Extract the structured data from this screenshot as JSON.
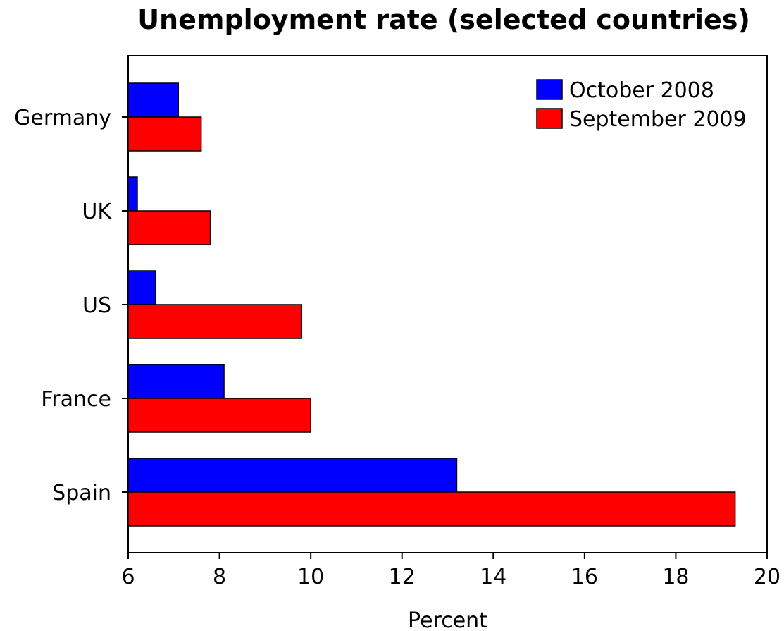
{
  "chart_data": {
    "type": "bar",
    "orientation": "horizontal",
    "title": "Unemployment rate (selected countries)",
    "xlabel": "Percent",
    "ylabel": "",
    "categories": [
      "Germany",
      "UK",
      "US",
      "France",
      "Spain"
    ],
    "series": [
      {
        "name": "October 2008",
        "color": "#0000ff",
        "values": [
          7.1,
          6.2,
          6.6,
          8.1,
          13.2
        ]
      },
      {
        "name": "September 2009",
        "color": "#ff0000",
        "values": [
          7.6,
          7.8,
          9.8,
          10.0,
          19.3
        ]
      }
    ],
    "xlim": [
      6,
      20
    ],
    "xticks": [
      6,
      8,
      10,
      12,
      14,
      16,
      18,
      20
    ],
    "grid": false,
    "legend_position": "top-right"
  }
}
